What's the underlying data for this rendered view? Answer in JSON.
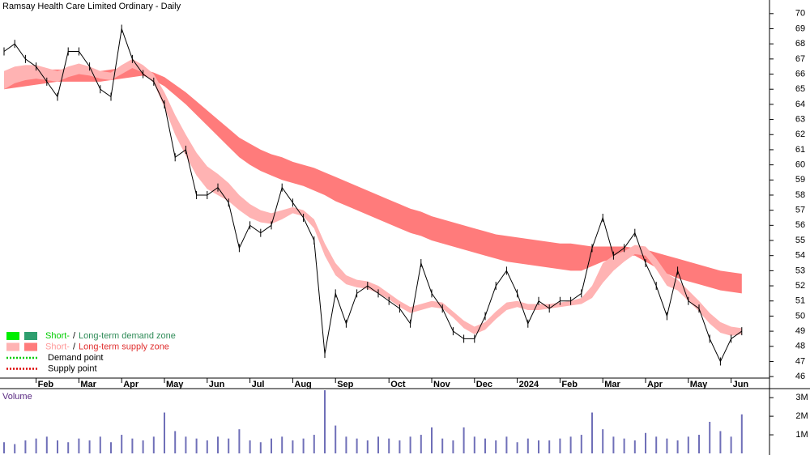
{
  "chart_data": [
    {
      "type": "line",
      "title": "Ramsay Health Care Limited Ordinary - Daily",
      "categories": [
        null,
        null,
        null,
        "Feb",
        null,
        null,
        null,
        "Mar",
        null,
        null,
        null,
        "Apr",
        null,
        null,
        null,
        "May",
        null,
        null,
        null,
        "Jun",
        null,
        null,
        null,
        "Jul",
        null,
        null,
        null,
        "Aug",
        null,
        null,
        null,
        "Sep",
        null,
        null,
        null,
        null,
        "Oct",
        null,
        null,
        null,
        "Nov",
        null,
        null,
        null,
        "Dec",
        null,
        null,
        null,
        "2024",
        null,
        null,
        null,
        "Feb",
        null,
        null,
        null,
        "Mar",
        null,
        null,
        null,
        "Apr",
        null,
        null,
        null,
        "May",
        null,
        null,
        null,
        "Jun",
        null
      ],
      "series": [
        {
          "color": "#000000",
          "values": [
            67.5,
            68,
            67,
            66.5,
            65.5,
            64.5,
            67.5,
            67.5,
            66.5,
            65,
            64.5,
            69,
            67,
            66,
            65.5,
            64,
            60.5,
            61,
            58,
            58,
            58.5,
            57.5,
            54.5,
            56,
            55.5,
            56,
            58.5,
            57.5,
            56.5,
            55,
            47.5,
            51.5,
            49.5,
            51.5,
            52,
            51.5,
            51,
            50.5,
            49.5,
            53.5,
            51.5,
            50.5,
            49,
            48.5,
            48.5,
            50,
            52,
            53,
            51.5,
            49.5,
            51,
            50.5,
            51,
            51,
            51.5,
            54.5,
            56.5,
            54,
            54.5,
            55.5,
            53.5,
            52,
            50,
            53,
            51,
            50.5,
            48.5,
            47,
            48.5,
            49
          ]
        }
      ],
      "bands": [
        {
          "color": "#ff7b7b",
          "upper": [
            66.0,
            66.1,
            66.2,
            66.3,
            66.3,
            66.3,
            66.3,
            66.2,
            66.2,
            66.2,
            66.3,
            66.4,
            66.4,
            66.3,
            66.1,
            65.8,
            65.3,
            64.8,
            64.2,
            63.6,
            63.0,
            62.4,
            61.8,
            61.4,
            61.0,
            60.7,
            60.5,
            60.2,
            60.0,
            59.8,
            59.5,
            59.2,
            58.9,
            58.6,
            58.3,
            58.0,
            57.7,
            57.4,
            57.1,
            56.9,
            56.6,
            56.4,
            56.2,
            56.0,
            55.8,
            55.6,
            55.4,
            55.3,
            55.2,
            55.1,
            55.0,
            54.9,
            54.8,
            54.8,
            54.7,
            54.6,
            54.6,
            54.6,
            54.6,
            54.5,
            54.4,
            54.2,
            54.0,
            53.8,
            53.6,
            53.4,
            53.2,
            53.0,
            52.9,
            52.8
          ],
          "lower": [
            65.0,
            65.1,
            65.2,
            65.3,
            65.4,
            65.5,
            65.5,
            65.5,
            65.5,
            65.5,
            65.6,
            65.7,
            65.8,
            65.9,
            65.6,
            65.2,
            64.6,
            64.0,
            63.3,
            62.6,
            61.9,
            61.2,
            60.5,
            60.0,
            59.6,
            59.3,
            59.0,
            58.8,
            58.6,
            58.3,
            58.0,
            57.6,
            57.3,
            57.0,
            56.7,
            56.4,
            56.1,
            55.8,
            55.5,
            55.3,
            55.0,
            54.8,
            54.6,
            54.4,
            54.2,
            54.0,
            53.8,
            53.6,
            53.5,
            53.4,
            53.3,
            53.2,
            53.1,
            53.0,
            53.0,
            53.3,
            53.6,
            53.8,
            54.0,
            54.0,
            53.6,
            53.2,
            52.8,
            52.5,
            52.3,
            52.1,
            51.9,
            51.7,
            51.6,
            51.5
          ]
        },
        {
          "color": "#ffb3b3",
          "upper": [
            66.2,
            66.5,
            66.6,
            66.6,
            66.4,
            66.2,
            66.5,
            66.7,
            66.5,
            66.2,
            66.1,
            66.6,
            67.0,
            66.6,
            66.0,
            64.8,
            63.3,
            62.0,
            60.8,
            59.9,
            59.4,
            58.8,
            58.0,
            57.4,
            57.0,
            56.8,
            57.0,
            57.2,
            57.0,
            56.4,
            54.8,
            53.5,
            52.7,
            52.4,
            52.3,
            52.0,
            51.5,
            51.0,
            50.6,
            50.8,
            51.0,
            50.9,
            50.3,
            49.7,
            49.3,
            49.6,
            50.3,
            50.9,
            51.0,
            50.8,
            50.8,
            50.8,
            50.9,
            51.0,
            51.2,
            52.0,
            53.5,
            54.0,
            54.3,
            54.7,
            54.6,
            53.8,
            52.8,
            52.4,
            51.7,
            51.0,
            50.2,
            49.6,
            49.3,
            49.2
          ],
          "lower": [
            65.0,
            65.4,
            65.6,
            65.7,
            65.6,
            65.5,
            65.8,
            66.0,
            65.9,
            65.7,
            65.6,
            66.0,
            66.4,
            66.1,
            65.4,
            63.8,
            62.0,
            60.6,
            59.3,
            58.4,
            58.0,
            57.6,
            57.0,
            56.5,
            56.2,
            56.1,
            56.4,
            56.8,
            56.6,
            55.8,
            54.0,
            52.7,
            52.1,
            51.9,
            51.8,
            51.5,
            51.1,
            50.6,
            50.2,
            50.4,
            50.6,
            50.5,
            49.9,
            49.2,
            48.8,
            49.1,
            49.8,
            50.4,
            50.6,
            50.4,
            50.4,
            50.5,
            50.6,
            50.7,
            50.8,
            51.2,
            52.2,
            53.0,
            53.6,
            54.1,
            54.0,
            53.1,
            52.0,
            51.7,
            51.0,
            50.3,
            49.5,
            48.9,
            48.7,
            48.8
          ]
        }
      ],
      "ylim": [
        45.9,
        70.9
      ],
      "yticks": [
        46,
        47,
        48,
        49,
        50,
        51,
        52,
        53,
        54,
        55,
        56,
        57,
        58,
        59,
        60,
        61,
        62,
        63,
        64,
        65,
        66,
        67,
        68,
        69,
        70
      ],
      "grid": false,
      "legend": [
        {
          "swatches": [
            "#00ee00",
            "#2e9e6e"
          ],
          "texts": [
            {
              "text": "Short-",
              "color": "#00cc00"
            },
            {
              "text": "/",
              "color": "#000000"
            },
            {
              "text": "Long-term demand zone",
              "color": "#2e8b57"
            }
          ]
        },
        {
          "swatches": [
            "#ffb3b3",
            "#ff7b7b"
          ],
          "texts": [
            {
              "text": "Short-",
              "color": "#ff9999"
            },
            {
              "text": "/",
              "color": "#000000"
            },
            {
              "text": "Long-term supply zone",
              "color": "#e03030"
            }
          ]
        },
        {
          "line": "#00cc00",
          "texts": [
            {
              "text": "Demand point",
              "color": "#000000"
            }
          ]
        },
        {
          "line": "#dd0000",
          "texts": [
            {
              "text": "Supply point",
              "color": "#000000"
            }
          ]
        }
      ]
    },
    {
      "type": "bar",
      "title": "Volume",
      "color": "#6f6fb8",
      "values": [
        600000,
        500000,
        700000,
        800000,
        900000,
        700000,
        600000,
        800000,
        700000,
        900000,
        600000,
        1000000,
        800000,
        700000,
        900000,
        2200000,
        1200000,
        900000,
        800000,
        700000,
        900000,
        800000,
        1300000,
        700000,
        600000,
        800000,
        900000,
        700000,
        800000,
        1000000,
        3400000,
        1500000,
        900000,
        800000,
        700000,
        900000,
        800000,
        700000,
        900000,
        1000000,
        1400000,
        800000,
        700000,
        1400000,
        900000,
        800000,
        700000,
        900000,
        600000,
        800000,
        700000,
        700000,
        800000,
        900000,
        1000000,
        2200000,
        1300000,
        900000,
        800000,
        700000,
        1100000,
        900000,
        800000,
        700000,
        900000,
        1000000,
        1700000,
        1200000,
        900000,
        2100000
      ],
      "ylim": [
        0,
        3400000
      ],
      "yticks": [
        {
          "value": 1000000,
          "label": "1M"
        },
        {
          "value": 2000000,
          "label": "2M"
        },
        {
          "value": 3000000,
          "label": "3M"
        }
      ]
    }
  ]
}
